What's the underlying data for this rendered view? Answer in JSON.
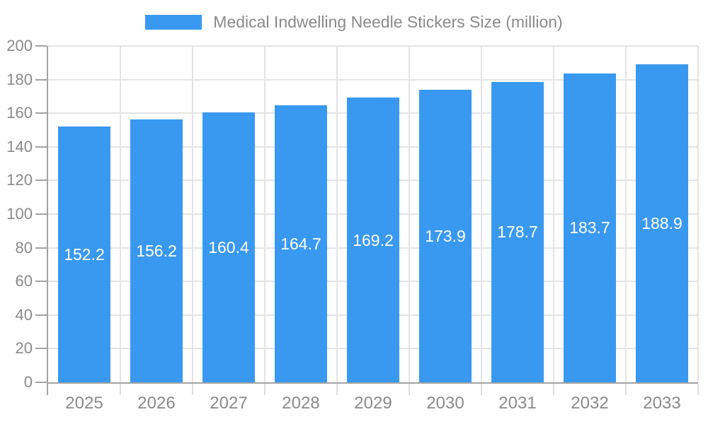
{
  "chart_data": {
    "type": "bar",
    "title": "Medical Indwelling Needle Stickers Size (million)",
    "categories": [
      "2025",
      "2026",
      "2027",
      "2028",
      "2029",
      "2030",
      "2031",
      "2032",
      "2033"
    ],
    "values": [
      152.2,
      156.2,
      160.4,
      164.7,
      169.2,
      173.9,
      178.7,
      183.7,
      188.9
    ],
    "ylim": [
      0,
      200
    ],
    "y_ticks": [
      0,
      20,
      40,
      60,
      80,
      100,
      120,
      140,
      160,
      180,
      200
    ],
    "grid": true,
    "legend_position": "top-center",
    "bar_color": "#3999F1",
    "value_label_color": "#FFFFFF",
    "axis_label_color": "#8A8A8A",
    "axis_line_color": "#A3A3A3",
    "gridline_color": "#E4E4E4",
    "x_tick_color": "#DDDDDD"
  }
}
